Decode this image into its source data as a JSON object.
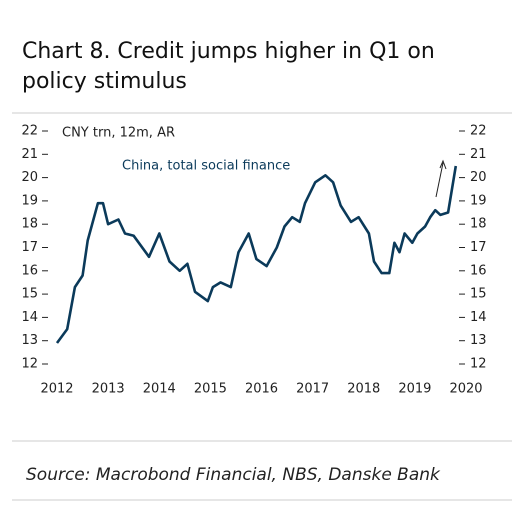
{
  "chart_data": {
    "type": "line",
    "title_lines": [
      "Chart 8. Credit jumps higher in Q1 on",
      "policy stimulus"
    ],
    "unit_label": "CNY trn, 12m, AR",
    "source": "Source: Macrobond Financial, NBS, Danske Bank",
    "xlim": [
      2012,
      2020
    ],
    "xticks": [
      2012,
      2013,
      2014,
      2015,
      2016,
      2017,
      2018,
      2019,
      2020
    ],
    "ylim": [
      12,
      22
    ],
    "yticks": [
      12,
      13,
      14,
      15,
      16,
      17,
      18,
      19,
      20,
      21,
      22
    ],
    "y2lim": [
      12,
      22
    ],
    "y2ticks": [
      12,
      13,
      14,
      15,
      16,
      17,
      18,
      19,
      20,
      21,
      22
    ],
    "series": [
      {
        "name": "China, total social finance",
        "color": "#0b3a5a",
        "x": [
          2012.0,
          2012.2,
          2012.35,
          2012.5,
          2012.6,
          2012.8,
          2012.9,
          2013.0,
          2013.2,
          2013.33,
          2013.5,
          2013.8,
          2014.0,
          2014.2,
          2014.4,
          2014.55,
          2014.7,
          2014.95,
          2015.05,
          2015.2,
          2015.4,
          2015.55,
          2015.75,
          2015.9,
          2016.1,
          2016.3,
          2016.45,
          2016.6,
          2016.75,
          2016.85,
          2017.05,
          2017.25,
          2017.4,
          2017.55,
          2017.75,
          2017.9,
          2018.1,
          2018.2,
          2018.35,
          2018.5,
          2018.6,
          2018.7,
          2018.8,
          2018.95,
          2019.05,
          2019.2,
          2019.3,
          2019.4,
          2019.5,
          2019.65,
          2019.8
        ],
        "values": [
          12.9,
          13.5,
          15.3,
          15.8,
          17.3,
          18.9,
          18.9,
          18.0,
          18.2,
          17.6,
          17.5,
          16.6,
          17.6,
          16.4,
          16.0,
          16.3,
          15.1,
          14.7,
          15.3,
          15.5,
          15.3,
          16.8,
          17.6,
          16.5,
          16.2,
          17.0,
          17.9,
          18.3,
          18.1,
          18.9,
          19.8,
          20.1,
          19.8,
          18.8,
          18.1,
          18.3,
          17.6,
          16.4,
          15.9,
          15.9,
          17.2,
          16.8,
          17.6,
          17.2,
          17.6,
          17.9,
          18.3,
          18.6,
          18.4,
          18.5,
          20.5
        ]
      }
    ]
  }
}
